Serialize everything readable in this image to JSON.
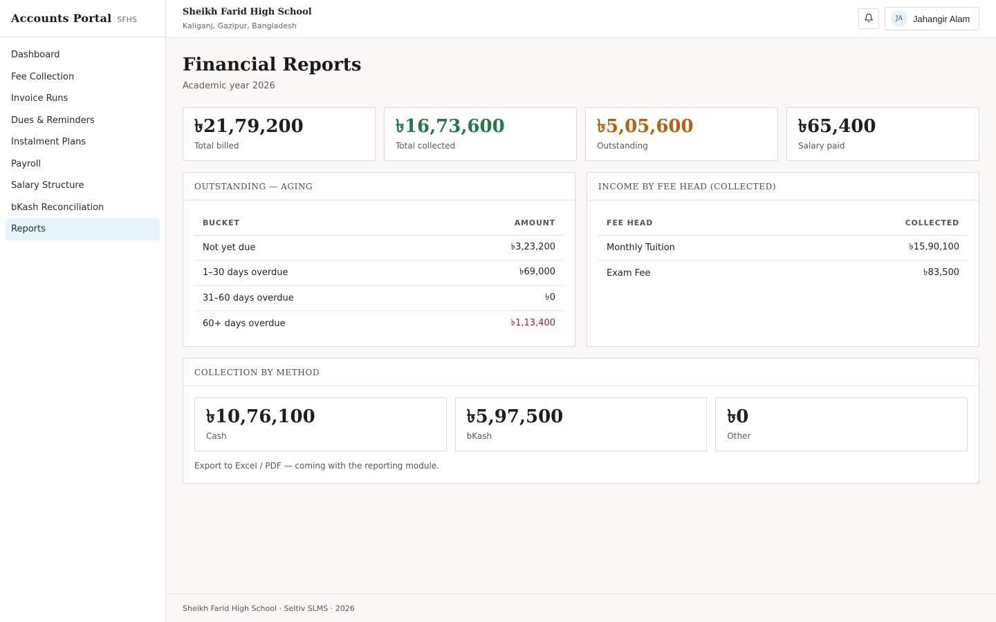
{
  "sidebar": {
    "brand": "Accounts Portal",
    "brand_code": "SFHS",
    "items": [
      {
        "label": "Dashboard"
      },
      {
        "label": "Fee Collection"
      },
      {
        "label": "Invoice Runs"
      },
      {
        "label": "Dues & Reminders"
      },
      {
        "label": "Instalment Plans"
      },
      {
        "label": "Payroll"
      },
      {
        "label": "Salary Structure"
      },
      {
        "label": "bKash Reconciliation"
      },
      {
        "label": "Reports",
        "active": true
      }
    ]
  },
  "header": {
    "school_name": "Sheikh Farid High School",
    "school_location": "Kaliganj, Gazipur, Bangladesh",
    "notifications_icon": "bell-icon",
    "user": {
      "initials": "JA",
      "name": "Jahangir Alam"
    }
  },
  "page": {
    "title": "Financial Reports",
    "subtitle": "Academic year 2026"
  },
  "stats": [
    {
      "value": "৳21,79,200",
      "label": "Total billed",
      "color": "#1f1f1f"
    },
    {
      "value": "৳16,73,600",
      "label": "Total collected",
      "color": "#1e7a4a"
    },
    {
      "value": "৳5,05,600",
      "label": "Outstanding",
      "color": "#b5620c"
    },
    {
      "value": "৳65,400",
      "label": "Salary paid",
      "color": "#1f1f1f"
    }
  ],
  "aging": {
    "title": "Outstanding — Aging",
    "columns": [
      "Bucket",
      "Amount"
    ],
    "rows": [
      {
        "bucket": "Not yet due",
        "amount": "৳3,23,200"
      },
      {
        "bucket": "1–30 days overdue",
        "amount": "৳69,000"
      },
      {
        "bucket": "31–60 days overdue",
        "amount": "৳0"
      },
      {
        "bucket": "60+ days overdue",
        "amount": "৳1,13,400",
        "highlight": "#a8172c"
      }
    ]
  },
  "income": {
    "title": "Income by Fee Head (Collected)",
    "columns": [
      "Fee Head",
      "Collected"
    ],
    "rows": [
      {
        "head": "Monthly Tuition",
        "collected": "৳15,90,100"
      },
      {
        "head": "Exam Fee",
        "collected": "৳83,500"
      }
    ]
  },
  "methods": {
    "title": "Collection by Method",
    "items": [
      {
        "value": "৳10,76,100",
        "label": "Cash"
      },
      {
        "value": "৳5,97,500",
        "label": "bKash"
      },
      {
        "value": "৳0",
        "label": "Other"
      }
    ],
    "note": "Export to Excel / PDF — coming with the reporting module."
  },
  "footer": {
    "text": "Sheikh Farid High School · Seltiv SLMS · 2026"
  }
}
